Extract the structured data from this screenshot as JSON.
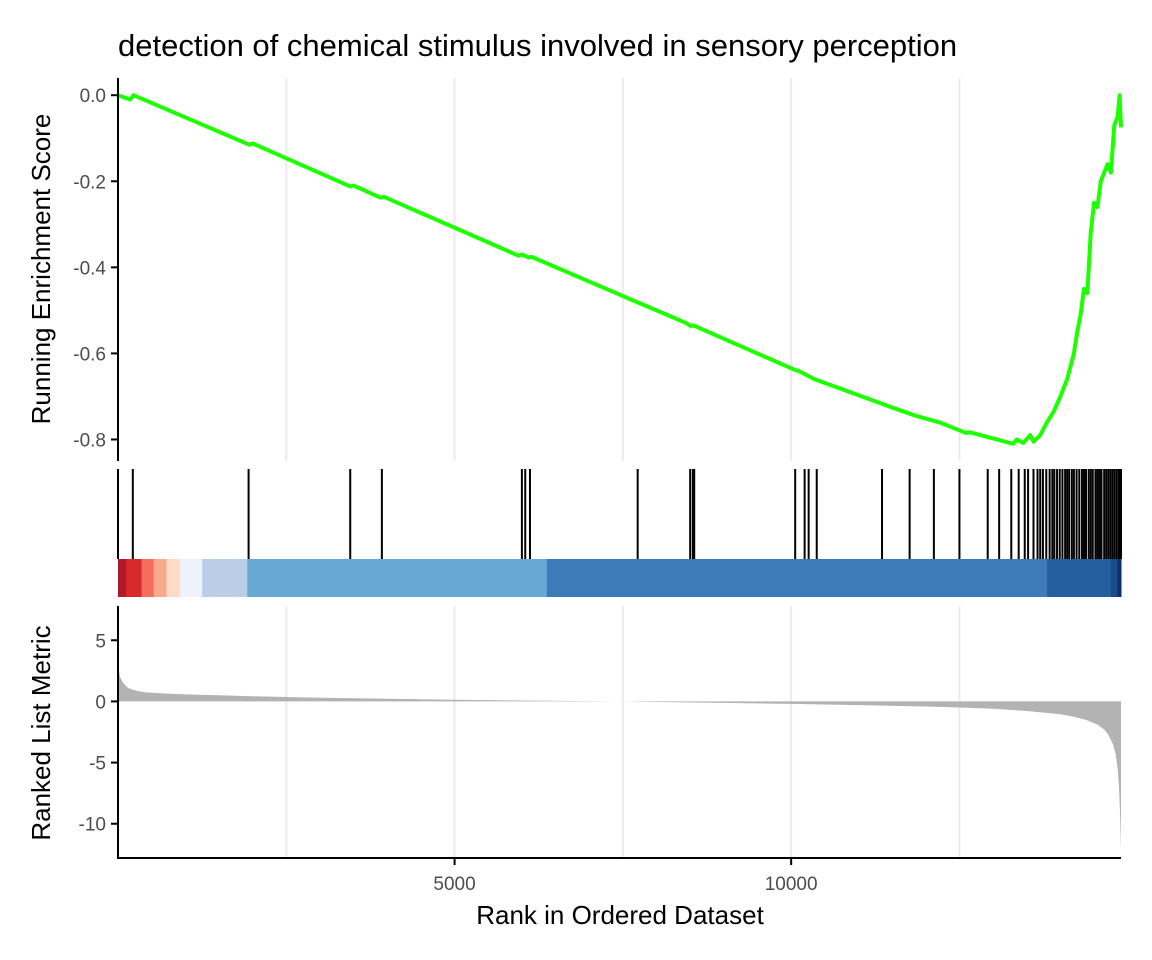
{
  "chart_data": {
    "type": "line",
    "title": "detection of chemical stimulus involved in sensory perception",
    "xlabel": "Rank in Ordered Dataset",
    "xlim": [
      0,
      14900
    ],
    "x_ticks": [
      5000,
      10000
    ],
    "x_tick_labels": [
      "5000",
      "10000"
    ],
    "x_gridlines": [
      2500,
      5000,
      7500,
      10000,
      12500
    ],
    "colors": {
      "running_score": "#1EFF00",
      "metric_area": "#B3B3B3",
      "hits": "#000000",
      "axis": "#000000",
      "grid": "#EBEBEB"
    },
    "panels": [
      {
        "name": "running-enrichment-score",
        "ylabel": "Running Enrichment Score",
        "ylim": [
          -0.85,
          0.04
        ],
        "y_ticks": [
          0.0,
          -0.2,
          -0.4,
          -0.6,
          -0.8
        ],
        "y_tick_labels": [
          "0.0",
          "-0.2",
          "-0.4",
          "-0.6",
          "-0.8"
        ],
        "series": [
          {
            "x": [
              0,
              180,
              230,
              1950,
              2000,
              3450,
              3500,
              3900,
              3950,
              5500,
              5950,
              6000,
              6100,
              6150,
              7700,
              8450,
              8500,
              8550,
              10050,
              10100,
              10200,
              10350,
              11400,
              11850,
              12200,
              12600,
              12650,
              13300,
              13350,
              13450,
              13550,
              13600,
              13700,
              13800,
              13900,
              14000,
              14100,
              14200,
              14250,
              14300,
              14350,
              14400,
              14450,
              14500,
              14550,
              14600,
              14650,
              14700,
              14750,
              14800,
              14850,
              14880,
              14900
            ],
            "y": [
              0.0,
              -0.01,
              0.0,
              -0.115,
              -0.112,
              -0.212,
              -0.21,
              -0.238,
              -0.236,
              -0.342,
              -0.373,
              -0.37,
              -0.377,
              -0.376,
              -0.48,
              -0.53,
              -0.536,
              -0.535,
              -0.638,
              -0.64,
              -0.648,
              -0.66,
              -0.72,
              -0.745,
              -0.76,
              -0.785,
              -0.783,
              -0.81,
              -0.8,
              -0.808,
              -0.79,
              -0.805,
              -0.79,
              -0.76,
              -0.735,
              -0.7,
              -0.66,
              -0.6,
              -0.55,
              -0.51,
              -0.45,
              -0.46,
              -0.32,
              -0.25,
              -0.26,
              -0.2,
              -0.18,
              -0.16,
              -0.18,
              -0.07,
              -0.05,
              0.0,
              -0.075
            ]
          }
        ]
      },
      {
        "name": "gene-hits",
        "hit_positions": [
          0,
          220,
          1940,
          3450,
          3920,
          6000,
          6050,
          6120,
          7720,
          8500,
          8540,
          8560,
          10060,
          10200,
          10260,
          10380,
          11350,
          11760,
          12120,
          12500,
          12920,
          13090,
          13270,
          13380,
          13470,
          13520,
          13600,
          13660,
          13700,
          13740,
          13790,
          13840,
          13880,
          13910,
          13950,
          13990,
          14030,
          14070,
          14100,
          14130,
          14170,
          14200,
          14240,
          14280,
          14320,
          14350,
          14380,
          14420,
          14450,
          14480,
          14520,
          14550,
          14580,
          14610,
          14650,
          14680,
          14710,
          14740,
          14770,
          14800,
          14830,
          14860,
          14880,
          14900
        ],
        "color_strip": [
          {
            "from": 0,
            "to": 120,
            "color": "#B2182B"
          },
          {
            "from": 120,
            "to": 350,
            "color": "#D6292C"
          },
          {
            "from": 350,
            "to": 530,
            "color": "#F46D5F"
          },
          {
            "from": 530,
            "to": 720,
            "color": "#F9A98C"
          },
          {
            "from": 720,
            "to": 920,
            "color": "#FDDBC7"
          },
          {
            "from": 920,
            "to": 1250,
            "color": "#EEF2FA"
          },
          {
            "from": 1250,
            "to": 1920,
            "color": "#BACFE7"
          },
          {
            "from": 1920,
            "to": 6370,
            "color": "#69A8D3"
          },
          {
            "from": 6370,
            "to": 13800,
            "color": "#3F7AB8"
          },
          {
            "from": 13800,
            "to": 14750,
            "color": "#255F9F"
          },
          {
            "from": 14750,
            "to": 14850,
            "color": "#1A4A87"
          },
          {
            "from": 14850,
            "to": 14900,
            "color": "#0B2F6B"
          }
        ]
      },
      {
        "name": "ranked-list-metric",
        "ylabel": "Ranked List Metric",
        "ylim": [
          -12.8,
          7.8
        ],
        "y_ticks": [
          5,
          0,
          -5,
          -10
        ],
        "y_tick_labels": [
          "5",
          "0",
          "-5",
          "-10"
        ],
        "series": [
          {
            "x": [
              0,
              30,
              80,
              150,
              250,
              400,
              600,
              900,
              1500,
              2000,
              3000,
              4000,
              5000,
              6000,
              7000,
              7500,
              8000,
              9000,
              10000,
              11000,
              12000,
              12500,
              13000,
              13500,
              14000,
              14200,
              14400,
              14550,
              14650,
              14720,
              14780,
              14820,
              14850,
              14870,
              14885,
              14895,
              14900
            ],
            "y": [
              3.0,
              2.0,
              1.5,
              1.1,
              0.9,
              0.75,
              0.68,
              0.6,
              0.5,
              0.42,
              0.3,
              0.22,
              0.14,
              0.07,
              0.02,
              0.0,
              -0.05,
              -0.12,
              -0.2,
              -0.3,
              -0.42,
              -0.5,
              -0.6,
              -0.78,
              -1.05,
              -1.25,
              -1.55,
              -1.9,
              -2.3,
              -2.8,
              -3.5,
              -4.3,
              -5.5,
              -7.0,
              -9.0,
              -11.0,
              -12.3
            ]
          }
        ]
      }
    ]
  }
}
